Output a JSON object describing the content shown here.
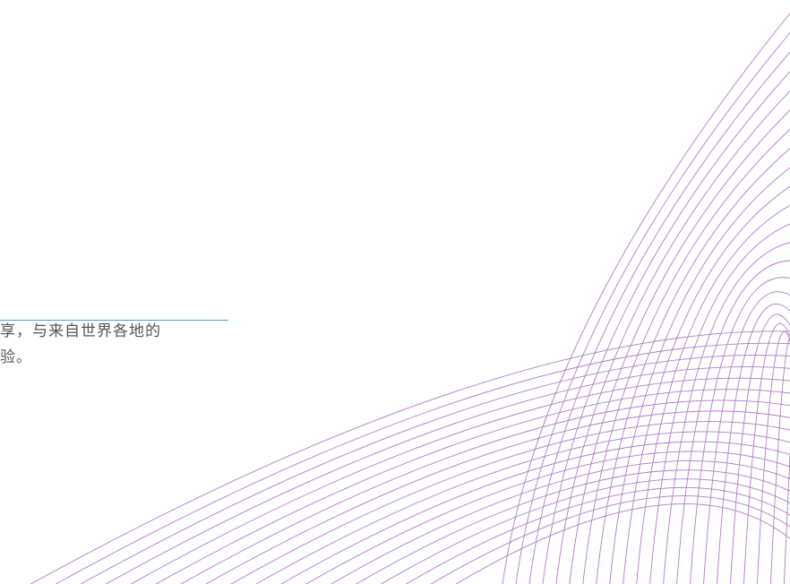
{
  "text": {
    "lines": [
      "享，与来自世界各地的",
      "验。"
    ]
  }
}
